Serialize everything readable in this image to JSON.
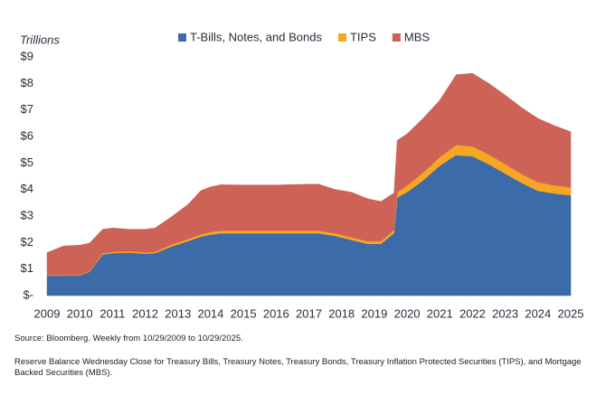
{
  "chart_data": {
    "type": "stacked_area",
    "y_axis_label": "Trillions",
    "source": "Source: Bloomberg. Weekly from 10/29/2009 to 10/29/2025.",
    "note": "Reserve Balance Wednesday Close for Treasury Bills, Treasury Notes, Treasury Bonds, Treasury Inflation Protected Securities (TIPS), and Mortgage Backed Securities (MBS).",
    "x": [
      2009.0,
      2009.5,
      2010.0,
      2010.3,
      2010.7,
      2011.0,
      2011.5,
      2012.0,
      2012.3,
      2012.8,
      2013.3,
      2013.7,
      2014.0,
      2014.3,
      2015.0,
      2016.0,
      2017.0,
      2017.3,
      2017.8,
      2018.3,
      2018.8,
      2019.2,
      2019.6,
      2019.7,
      2020.0,
      2020.5,
      2021.0,
      2021.5,
      2022.0,
      2022.5,
      2023.0,
      2023.5,
      2024.0,
      2024.5,
      2025.0
    ],
    "series": [
      {
        "name": "T-Bills, Notes, and Bonds",
        "color": "#3b6ba8",
        "values": [
          0.75,
          0.75,
          0.76,
          0.9,
          1.55,
          1.6,
          1.62,
          1.58,
          1.6,
          1.85,
          2.05,
          2.22,
          2.3,
          2.35,
          2.35,
          2.35,
          2.35,
          2.35,
          2.25,
          2.1,
          1.95,
          1.95,
          2.35,
          3.7,
          3.9,
          4.35,
          4.9,
          5.3,
          5.25,
          4.95,
          4.6,
          4.25,
          3.95,
          3.85,
          3.78
        ]
      },
      {
        "name": "TIPS",
        "color": "#f5a623",
        "values": [
          0.02,
          0.02,
          0.02,
          0.03,
          0.05,
          0.05,
          0.05,
          0.05,
          0.05,
          0.07,
          0.08,
          0.09,
          0.1,
          0.1,
          0.1,
          0.1,
          0.1,
          0.1,
          0.1,
          0.1,
          0.1,
          0.1,
          0.12,
          0.2,
          0.25,
          0.3,
          0.32,
          0.38,
          0.38,
          0.37,
          0.36,
          0.34,
          0.33,
          0.31,
          0.3
        ]
      },
      {
        "name": "MBS",
        "color": "#cd6257",
        "values": [
          0.85,
          1.1,
          1.12,
          1.05,
          0.9,
          0.9,
          0.83,
          0.87,
          0.9,
          1.05,
          1.3,
          1.65,
          1.7,
          1.73,
          1.72,
          1.72,
          1.75,
          1.75,
          1.65,
          1.7,
          1.6,
          1.5,
          1.4,
          1.95,
          1.95,
          2.05,
          2.15,
          2.65,
          2.75,
          2.68,
          2.6,
          2.5,
          2.4,
          2.25,
          2.1
        ]
      }
    ],
    "xlim": [
      2009,
      2025
    ],
    "xticks": [
      2009,
      2010,
      2011,
      2012,
      2013,
      2014,
      2015,
      2016,
      2017,
      2018,
      2019,
      2020,
      2021,
      2022,
      2023,
      2024,
      2025
    ],
    "ylim": [
      0,
      9
    ],
    "yticks": [
      {
        "value": 0,
        "label": "$-"
      },
      {
        "value": 1,
        "label": "$1"
      },
      {
        "value": 2,
        "label": "$2"
      },
      {
        "value": 3,
        "label": "$3"
      },
      {
        "value": 4,
        "label": "$4"
      },
      {
        "value": 5,
        "label": "$5"
      },
      {
        "value": 6,
        "label": "$6"
      },
      {
        "value": 7,
        "label": "$7"
      },
      {
        "value": 8,
        "label": "$8"
      },
      {
        "value": 9,
        "label": "$9"
      }
    ],
    "legend": "top"
  }
}
